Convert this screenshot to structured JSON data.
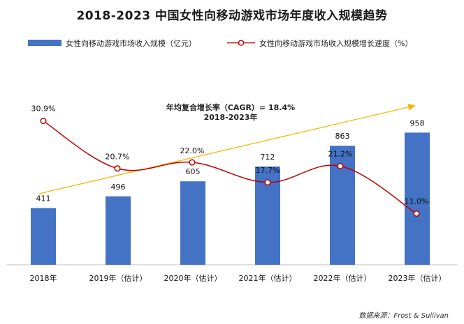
{
  "title": "2018-2023  中国女性向移动游戏市场年度收入规模趋势",
  "source": "数据来源：Frost & Sullivan",
  "colors": {
    "bar": "#4472C4",
    "line": "#C00000",
    "trend": "#F5B800",
    "axis": "#BFBFBF"
  },
  "chart_data": {
    "type": "bar",
    "categories": [
      "2018年",
      "2019年（估计）",
      "2020年（估计）",
      "2021年（估计）",
      "2022年（估计）",
      "2023年（估计）"
    ],
    "series": [
      {
        "name": "女性向移动游戏市场收入规模（亿元）",
        "type": "bar",
        "values": [
          411,
          496,
          605,
          712,
          863,
          958
        ],
        "labels": [
          "411",
          "496",
          "605",
          "712",
          "863",
          "958"
        ]
      },
      {
        "name": "女性向移动游戏市场收入规模增长速度（%）",
        "type": "line",
        "values": [
          30.9,
          20.7,
          22.0,
          17.7,
          21.2,
          11.0
        ],
        "labels": [
          "30.9%",
          "20.7%",
          "22.0%",
          "17.7%",
          "21.2%",
          "11.0%"
        ]
      }
    ],
    "annotation": {
      "line1": "年均复合增长率（CAGR）= 18.4%",
      "line2": "2018-2023年"
    },
    "legend_position": "top-left"
  }
}
